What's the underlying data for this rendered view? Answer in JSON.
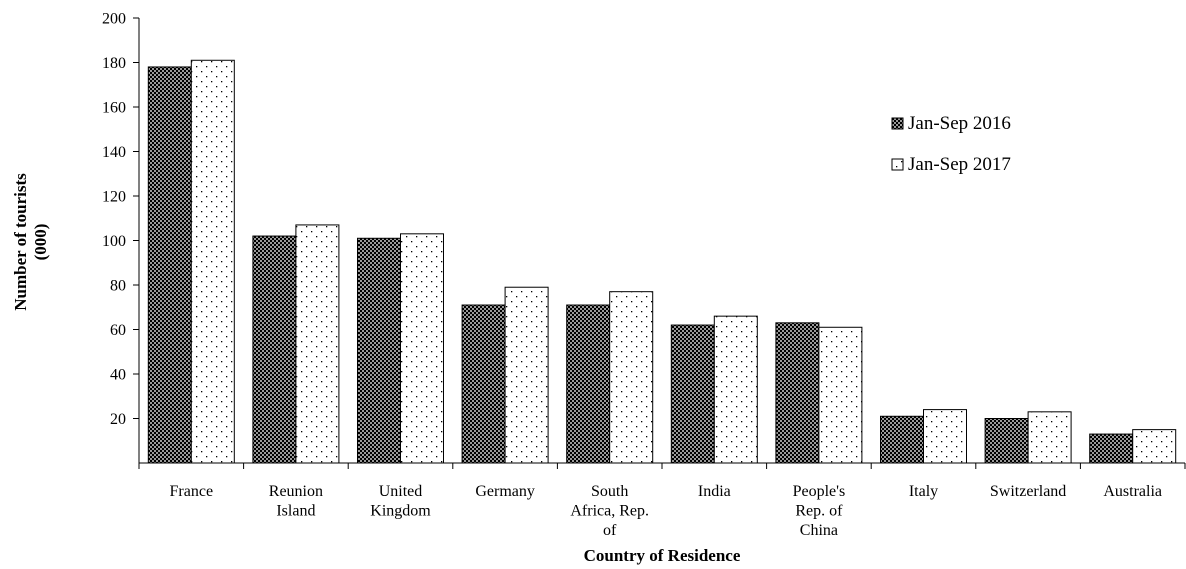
{
  "chart_data": {
    "type": "bar",
    "title": "",
    "xlabel": "Country of Residence",
    "ylabel_lines": [
      "Number of tourists",
      "(000)"
    ],
    "ylim": [
      0,
      200
    ],
    "yticks": [
      20,
      40,
      60,
      80,
      100,
      120,
      140,
      160,
      180,
      200
    ],
    "grid": false,
    "legend_position": "right",
    "categories": [
      [
        "France"
      ],
      [
        "Reunion",
        "Island"
      ],
      [
        "United",
        "Kingdom"
      ],
      [
        "Germany"
      ],
      [
        "South",
        "Africa, Rep.",
        "of"
      ],
      [
        "India"
      ],
      [
        "People's",
        "Rep. of",
        "China"
      ],
      [
        "Italy"
      ],
      [
        "Switzerland"
      ],
      [
        "Australia"
      ]
    ],
    "series": [
      {
        "name": "Jan-Sep 2016",
        "pattern": "dark-checker",
        "values": [
          178,
          102,
          101,
          71,
          71,
          62,
          63,
          21,
          20,
          13
        ]
      },
      {
        "name": "Jan-Sep 2017",
        "pattern": "dotted",
        "values": [
          181,
          107,
          103,
          79,
          77,
          66,
          61,
          24,
          23,
          15
        ]
      }
    ],
    "colors": {
      "bar_2016_dark": "#000000",
      "bar_2016_light": "#9a9a9a",
      "bar_2017_fill": "#ffffff",
      "bar_2017_dot": "#000000",
      "axis": "#000000"
    }
  }
}
